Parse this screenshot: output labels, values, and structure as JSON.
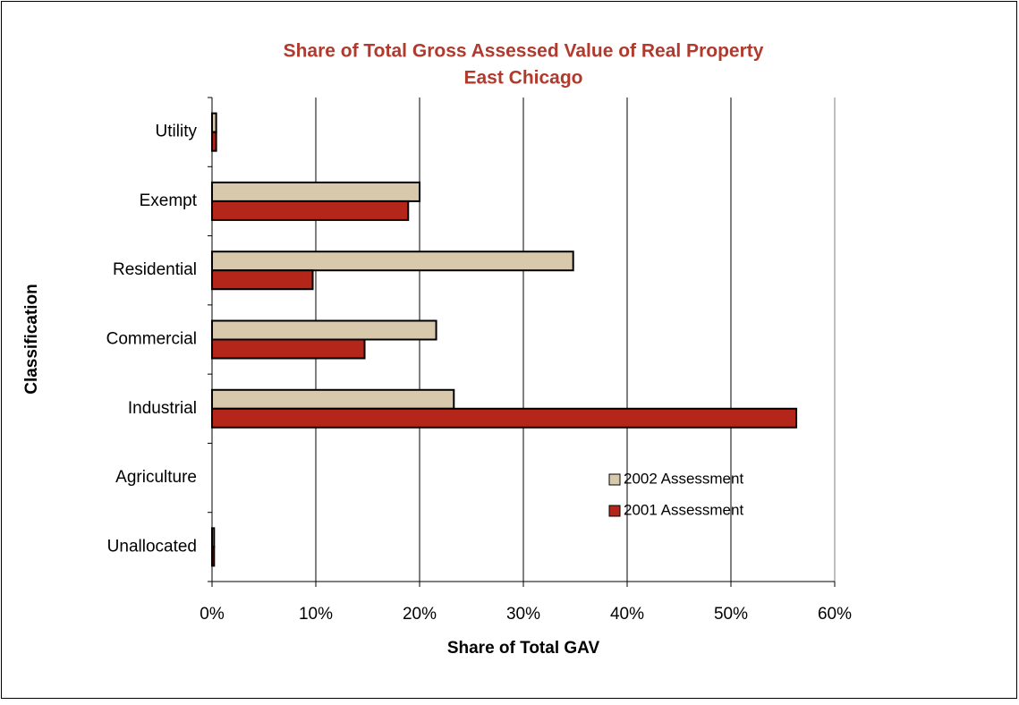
{
  "chart_data": {
    "type": "bar",
    "orientation": "horizontal",
    "title": "Share of Total Gross Assessed Value of Real Property",
    "subtitle": "East Chicago",
    "x_label": "Share of Total GAV",
    "y_label": "Classification",
    "categories": [
      "Utility",
      "Exempt",
      "Residential",
      "Commercial",
      "Industrial",
      "Agriculture",
      "Unallocated"
    ],
    "series": [
      {
        "name": "2002 Assessment",
        "color": "#d9c9ac",
        "values": [
          0.4,
          20.0,
          34.8,
          21.6,
          23.3,
          0,
          0.2
        ]
      },
      {
        "name": "2001 Assessment",
        "color": "#b5261a",
        "values": [
          0.4,
          18.9,
          9.7,
          14.7,
          56.3,
          0,
          0.2
        ]
      }
    ],
    "xlim": [
      0,
      60
    ],
    "xticks": [
      {
        "value": 0,
        "label": "0%"
      },
      {
        "value": 10,
        "label": "10%"
      },
      {
        "value": 20,
        "label": "20%"
      },
      {
        "value": 30,
        "label": "30%"
      },
      {
        "value": 40,
        "label": "40%"
      },
      {
        "value": 50,
        "label": "50%"
      },
      {
        "value": 60,
        "label": "60%"
      }
    ],
    "grid": true,
    "legend": "lower right"
  }
}
